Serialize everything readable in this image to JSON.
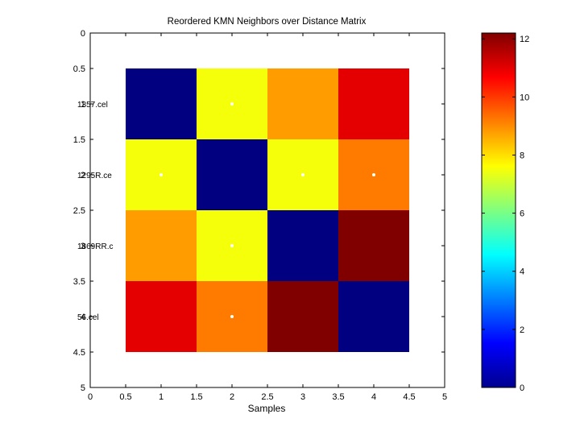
{
  "chart_data": [
    {
      "type": "heatmap",
      "title": "Reordered KMN Neighbors over Distance Matrix",
      "xlabel": "Samples",
      "ylabel": "",
      "xlim": [
        0,
        5
      ],
      "ylim": [
        0,
        5
      ],
      "y_reversed": true,
      "colormap": "jet",
      "clim": [
        0,
        12.2
      ],
      "x_ticks": [
        "0",
        "0.5",
        "1",
        "1.5",
        "2",
        "2.5",
        "3",
        "3.5",
        "4",
        "4.5",
        "5"
      ],
      "y_ticks": [
        "0",
        "0.5",
        "1",
        "1.5",
        "2",
        "2.5",
        "3",
        "3.5",
        "4",
        "4.5",
        "5"
      ],
      "overlapping_y_labels": [
        {
          "y": 1,
          "text": "1357.cel"
        },
        {
          "y": 2,
          "text": "1295R.ce"
        },
        {
          "y": 3,
          "text": "1869RR.c"
        },
        {
          "y": 4,
          "text": "56.cel"
        }
      ],
      "matrix": [
        [
          0.0,
          7.5,
          8.8,
          11.0
        ],
        [
          7.5,
          0.0,
          7.5,
          9.2
        ],
        [
          8.8,
          7.5,
          0.0,
          12.2
        ],
        [
          11.0,
          9.2,
          12.2,
          0.0
        ]
      ],
      "neighbor_markers": [
        {
          "row": 1,
          "col": 2
        },
        {
          "row": 2,
          "col": 1
        },
        {
          "row": 2,
          "col": 3
        },
        {
          "row": 2,
          "col": 4
        },
        {
          "row": 3,
          "col": 2
        },
        {
          "row": 4,
          "col": 2
        }
      ],
      "marker_color": "#ffffff",
      "grid": false
    },
    {
      "type": "colorbar",
      "colormap": "jet",
      "ylim": [
        0,
        12.2
      ],
      "ticks": [
        "0",
        "2",
        "4",
        "6",
        "8",
        "10",
        "12"
      ],
      "tick_values": [
        0,
        2,
        4,
        6,
        8,
        10,
        12
      ]
    }
  ]
}
